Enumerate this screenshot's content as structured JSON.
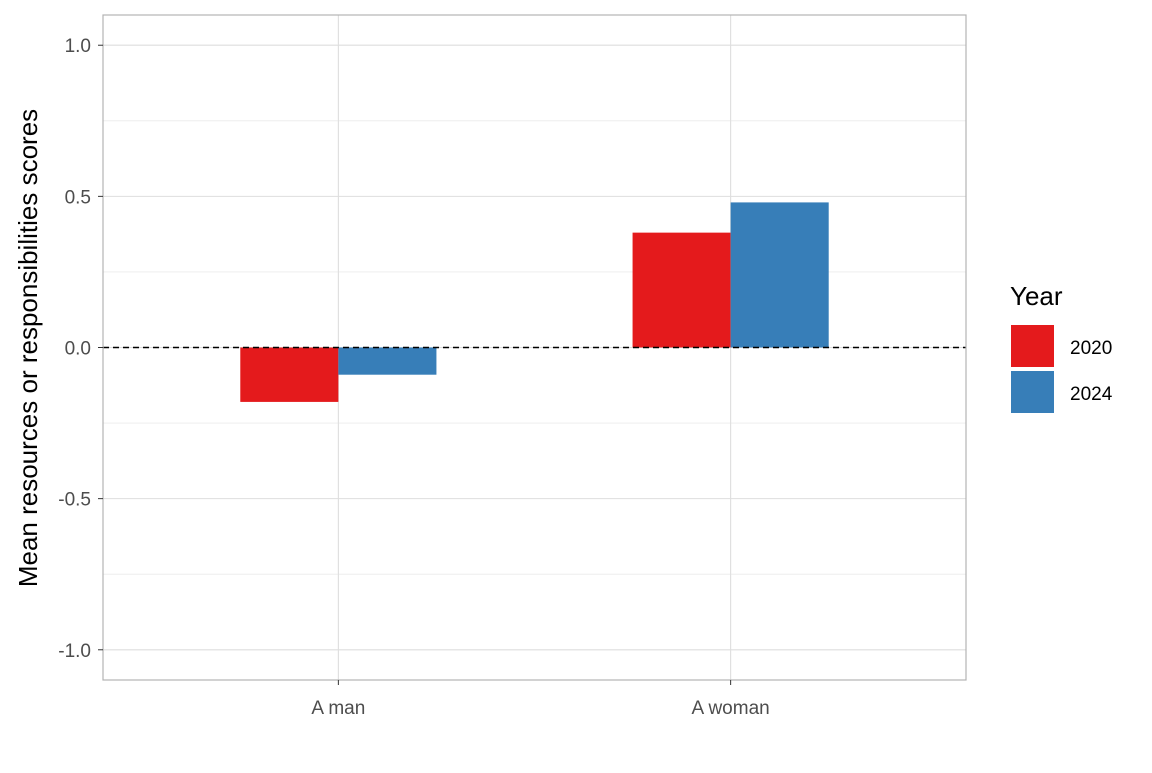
{
  "chart_data": {
    "type": "bar",
    "title": "",
    "xlabel": "",
    "ylabel": "Mean resources or responsibilities scores",
    "categories": [
      "A man",
      "A woman"
    ],
    "series": [
      {
        "name": "2020",
        "values": [
          -0.18,
          0.38
        ],
        "color": "#E41A1C"
      },
      {
        "name": "2024",
        "values": [
          -0.09,
          0.48
        ],
        "color": "#377EB8"
      }
    ],
    "ylim": [
      -1.1,
      1.1
    ],
    "yticks": [
      -1.0,
      -0.5,
      0.0,
      0.5,
      1.0
    ],
    "ytick_labels": [
      "-1.0",
      "-0.5",
      "0.0",
      "0.5",
      "1.0"
    ],
    "reference_line": {
      "y": 0,
      "style": "dashed"
    },
    "grid": true,
    "legend": {
      "title": "Year",
      "placement": "right"
    }
  }
}
